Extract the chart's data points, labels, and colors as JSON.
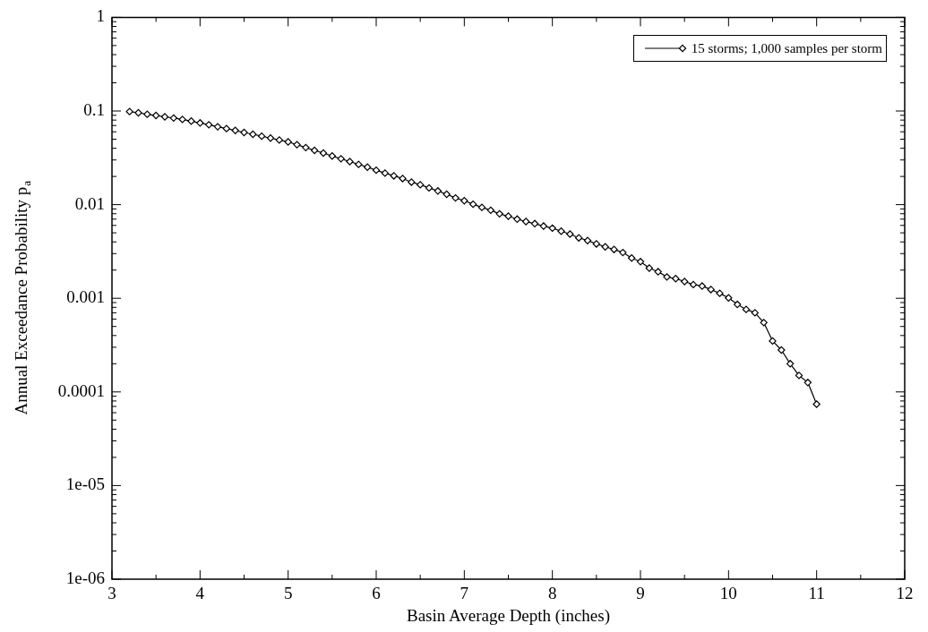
{
  "chart_data": {
    "type": "line",
    "xlabel": "Basin Average Depth (inches)",
    "ylabel": "Annual Exceedance Probability p$_{a}$",
    "log": "y",
    "xlim": [
      3,
      12
    ],
    "xticks": [
      3,
      4,
      5,
      6,
      7,
      8,
      9,
      10,
      11,
      12
    ],
    "ylim": [
      1e-06,
      1
    ],
    "yticks": [
      {
        "value": 1e-06,
        "label": "1e-06"
      },
      {
        "value": 1e-05,
        "label": "1e-05"
      },
      0.0001,
      0.001,
      0.01,
      0.1,
      1
    ],
    "legend": "top right",
    "marker": "diamond",
    "line_style": "solid",
    "grid": false,
    "series": [
      {
        "name": "15 storms; 1,000 samples per storm",
        "color": "#000000",
        "x": [
          3.2,
          3.3,
          3.4,
          3.5,
          3.6,
          3.7,
          3.8,
          3.9,
          4.0,
          4.1,
          4.2,
          4.3,
          4.4,
          4.5,
          4.6,
          4.7,
          4.8,
          4.9,
          5.0,
          5.1,
          5.2,
          5.3,
          5.4,
          5.5,
          5.6,
          5.7,
          5.8,
          5.9,
          6.0,
          6.1,
          6.2,
          6.3,
          6.4,
          6.5,
          6.6,
          6.7,
          6.8,
          6.9,
          7.0,
          7.1,
          7.2,
          7.3,
          7.4,
          7.5,
          7.6,
          7.7,
          7.8,
          7.9,
          8.0,
          8.1,
          8.2,
          8.3,
          8.4,
          8.5,
          8.6,
          8.7,
          8.8,
          8.9,
          9.0,
          9.1,
          9.2,
          9.3,
          9.4,
          9.5,
          9.6,
          9.7,
          9.8,
          9.9,
          10.0,
          10.1,
          10.2,
          10.3,
          10.4,
          10.5,
          10.6,
          10.7,
          10.8,
          10.9,
          11.0
        ],
        "values": [
          0.0986,
          0.0957,
          0.0923,
          0.0895,
          0.0867,
          0.0841,
          0.0813,
          0.078,
          0.0746,
          0.0713,
          0.0679,
          0.0649,
          0.0619,
          0.059,
          0.0564,
          0.0538,
          0.0514,
          0.049,
          0.0468,
          0.0437,
          0.0407,
          0.038,
          0.0355,
          0.0331,
          0.0309,
          0.0288,
          0.0269,
          0.0251,
          0.0233,
          0.0217,
          0.0203,
          0.019,
          0.0174,
          0.0163,
          0.0151,
          0.014,
          0.0129,
          0.0118,
          0.011,
          0.0101,
          0.00935,
          0.00871,
          0.00798,
          0.00752,
          0.007,
          0.00659,
          0.00627,
          0.0059,
          0.00561,
          0.00521,
          0.00485,
          0.00442,
          0.00413,
          0.00381,
          0.00354,
          0.00332,
          0.00308,
          0.00269,
          0.00246,
          0.0021,
          0.00192,
          0.00169,
          0.00162,
          0.00151,
          0.0014,
          0.00135,
          0.00124,
          0.00113,
          0.00101,
          0.00086,
          0.00076,
          0.0007,
          0.00055,
          0.00035,
          0.00028,
          0.0002,
          0.00015,
          0.000126,
          7.4e-05
        ]
      }
    ]
  }
}
